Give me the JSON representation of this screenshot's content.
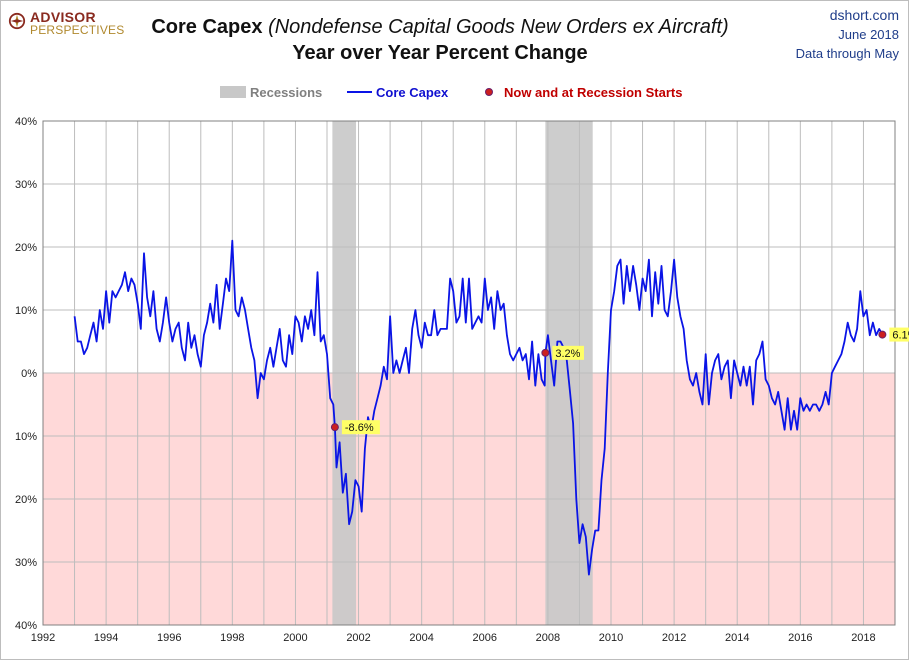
{
  "header": {
    "logo_top": "ADVISOR",
    "logo_bottom": "PERSPECTIVES",
    "title_bold": "Core Capex",
    "title_italic": "(Nondefense  Capital Goods New Orders ex Aircraft)",
    "subtitle": "Year over Year Percent Change",
    "source_line1": "dshort.com",
    "source_line2": "June 2018",
    "source_line3": "Data through May"
  },
  "colors": {
    "line": "#0a14e6",
    "recession": "#c8c8c8",
    "negative_zone": "#ffd9d9",
    "marker": "#cc1f1f",
    "label_bg": "#ffff66",
    "legend_marker_text": "#c00000",
    "legend_line_text": "#1010d0",
    "legend_recession_text": "#808080"
  },
  "chart_data": {
    "type": "line",
    "title": "Core Capex (Nondefense  Capital Goods New Orders ex Aircraft)",
    "subtitle": "Year over Year Percent Change",
    "xlim": [
      1992,
      2019
    ],
    "ylim": [
      -40,
      40
    ],
    "x_ticks": [
      1992,
      1994,
      1996,
      1998,
      2000,
      2002,
      2004,
      2006,
      2008,
      2010,
      2012,
      2014,
      2016,
      2018
    ],
    "x_tick_labels": [
      "1992",
      "1994",
      "1996",
      "1998",
      "2000",
      "2002",
      "2004",
      "2006",
      "2008",
      "2010",
      "2012",
      "2014",
      "2016",
      "2018"
    ],
    "y_ticks": [
      -40,
      -30,
      -20,
      -10,
      0,
      10,
      20,
      30,
      40
    ],
    "y_tick_labels": [
      "40%",
      "30%",
      "20%",
      "10%",
      "0%",
      "10%",
      "20%",
      "30%",
      "40%"
    ],
    "grid": "vertical yearly and horizontal every 10%",
    "legend": [
      {
        "label": "Recessions",
        "kind": "band"
      },
      {
        "label": "Core Capex",
        "kind": "line"
      },
      {
        "label": "Now and at Recession Starts",
        "kind": "marker"
      }
    ],
    "legend_position": "top-center",
    "recessions": [
      [
        2001.17,
        2001.92
      ],
      [
        2007.92,
        2009.42
      ]
    ],
    "series": [
      {
        "name": "Core Capex",
        "points": [
          [
            1993.0,
            9
          ],
          [
            1993.1,
            5
          ],
          [
            1993.2,
            5
          ],
          [
            1993.3,
            3
          ],
          [
            1993.4,
            4
          ],
          [
            1993.5,
            6
          ],
          [
            1993.6,
            8
          ],
          [
            1993.7,
            5
          ],
          [
            1993.8,
            10
          ],
          [
            1993.9,
            7
          ],
          [
            1994.0,
            13
          ],
          [
            1994.1,
            8
          ],
          [
            1994.2,
            13
          ],
          [
            1994.3,
            12
          ],
          [
            1994.4,
            13
          ],
          [
            1994.5,
            14
          ],
          [
            1994.6,
            16
          ],
          [
            1994.7,
            13
          ],
          [
            1994.8,
            15
          ],
          [
            1994.9,
            14
          ],
          [
            1995.0,
            11
          ],
          [
            1995.1,
            7
          ],
          [
            1995.2,
            19
          ],
          [
            1995.3,
            12
          ],
          [
            1995.4,
            9
          ],
          [
            1995.5,
            13
          ],
          [
            1995.6,
            7
          ],
          [
            1995.7,
            5
          ],
          [
            1995.8,
            8
          ],
          [
            1995.9,
            12
          ],
          [
            1996.0,
            8
          ],
          [
            1996.1,
            5
          ],
          [
            1996.2,
            7
          ],
          [
            1996.3,
            8
          ],
          [
            1996.4,
            4
          ],
          [
            1996.5,
            2
          ],
          [
            1996.6,
            8
          ],
          [
            1996.7,
            4
          ],
          [
            1996.8,
            6
          ],
          [
            1996.9,
            3
          ],
          [
            1997.0,
            1
          ],
          [
            1997.1,
            6
          ],
          [
            1997.2,
            8
          ],
          [
            1997.3,
            11
          ],
          [
            1997.4,
            8
          ],
          [
            1997.5,
            14
          ],
          [
            1997.6,
            7
          ],
          [
            1997.7,
            11
          ],
          [
            1997.8,
            15
          ],
          [
            1997.9,
            13
          ],
          [
            1998.0,
            21
          ],
          [
            1998.1,
            10
          ],
          [
            1998.2,
            9
          ],
          [
            1998.3,
            12
          ],
          [
            1998.4,
            10
          ],
          [
            1998.5,
            7
          ],
          [
            1998.6,
            4
          ],
          [
            1998.7,
            2
          ],
          [
            1998.8,
            -4
          ],
          [
            1998.9,
            0
          ],
          [
            1999.0,
            -1
          ],
          [
            1999.1,
            2
          ],
          [
            1999.2,
            4
          ],
          [
            1999.3,
            1
          ],
          [
            1999.4,
            4
          ],
          [
            1999.5,
            7
          ],
          [
            1999.6,
            2
          ],
          [
            1999.7,
            1
          ],
          [
            1999.8,
            6
          ],
          [
            1999.9,
            3
          ],
          [
            2000.0,
            9
          ],
          [
            2000.1,
            8
          ],
          [
            2000.2,
            5
          ],
          [
            2000.3,
            9
          ],
          [
            2000.4,
            7
          ],
          [
            2000.5,
            10
          ],
          [
            2000.6,
            6
          ],
          [
            2000.7,
            16
          ],
          [
            2000.8,
            5
          ],
          [
            2000.9,
            6
          ],
          [
            2001.0,
            3
          ],
          [
            2001.1,
            -4
          ],
          [
            2001.2,
            -5
          ],
          [
            2001.25,
            -8.6
          ],
          [
            2001.3,
            -15
          ],
          [
            2001.4,
            -11
          ],
          [
            2001.5,
            -19
          ],
          [
            2001.6,
            -16
          ],
          [
            2001.7,
            -24
          ],
          [
            2001.8,
            -22
          ],
          [
            2001.9,
            -17
          ],
          [
            2002.0,
            -18
          ],
          [
            2002.1,
            -22
          ],
          [
            2002.2,
            -12
          ],
          [
            2002.3,
            -7
          ],
          [
            2002.4,
            -9
          ],
          [
            2002.5,
            -6
          ],
          [
            2002.6,
            -4
          ],
          [
            2002.7,
            -2
          ],
          [
            2002.8,
            1
          ],
          [
            2002.9,
            -1
          ],
          [
            2003.0,
            9
          ],
          [
            2003.1,
            0
          ],
          [
            2003.2,
            2
          ],
          [
            2003.3,
            0
          ],
          [
            2003.4,
            2
          ],
          [
            2003.5,
            4
          ],
          [
            2003.6,
            0
          ],
          [
            2003.7,
            7
          ],
          [
            2003.8,
            10
          ],
          [
            2003.9,
            6
          ],
          [
            2004.0,
            4
          ],
          [
            2004.1,
            8
          ],
          [
            2004.2,
            6
          ],
          [
            2004.3,
            6
          ],
          [
            2004.4,
            10
          ],
          [
            2004.5,
            6
          ],
          [
            2004.6,
            7
          ],
          [
            2004.7,
            7
          ],
          [
            2004.8,
            7
          ],
          [
            2004.9,
            15
          ],
          [
            2005.0,
            13
          ],
          [
            2005.1,
            8
          ],
          [
            2005.2,
            9
          ],
          [
            2005.3,
            15
          ],
          [
            2005.4,
            8
          ],
          [
            2005.5,
            15
          ],
          [
            2005.6,
            7
          ],
          [
            2005.7,
            8
          ],
          [
            2005.8,
            9
          ],
          [
            2005.9,
            8
          ],
          [
            2006.0,
            15
          ],
          [
            2006.1,
            10
          ],
          [
            2006.2,
            12
          ],
          [
            2006.3,
            7
          ],
          [
            2006.4,
            13
          ],
          [
            2006.5,
            10
          ],
          [
            2006.6,
            11
          ],
          [
            2006.7,
            6
          ],
          [
            2006.8,
            3
          ],
          [
            2006.9,
            2
          ],
          [
            2007.0,
            3
          ],
          [
            2007.1,
            4
          ],
          [
            2007.2,
            2
          ],
          [
            2007.3,
            3
          ],
          [
            2007.4,
            -1
          ],
          [
            2007.5,
            5
          ],
          [
            2007.6,
            -2
          ],
          [
            2007.7,
            3
          ],
          [
            2007.8,
            -1
          ],
          [
            2007.9,
            -2
          ],
          [
            2007.92,
            3.2
          ],
          [
            2008.0,
            6
          ],
          [
            2008.1,
            2
          ],
          [
            2008.2,
            -2
          ],
          [
            2008.3,
            5
          ],
          [
            2008.4,
            5
          ],
          [
            2008.5,
            4
          ],
          [
            2008.6,
            2
          ],
          [
            2008.7,
            -3
          ],
          [
            2008.8,
            -8
          ],
          [
            2008.9,
            -20
          ],
          [
            2009.0,
            -27
          ],
          [
            2009.1,
            -24
          ],
          [
            2009.2,
            -26
          ],
          [
            2009.3,
            -32
          ],
          [
            2009.4,
            -28
          ],
          [
            2009.5,
            -25
          ],
          [
            2009.6,
            -25
          ],
          [
            2009.7,
            -17
          ],
          [
            2009.8,
            -12
          ],
          [
            2009.9,
            0
          ],
          [
            2010.0,
            10
          ],
          [
            2010.1,
            13
          ],
          [
            2010.2,
            17
          ],
          [
            2010.3,
            18
          ],
          [
            2010.4,
            11
          ],
          [
            2010.5,
            17
          ],
          [
            2010.6,
            13
          ],
          [
            2010.7,
            17
          ],
          [
            2010.8,
            14
          ],
          [
            2010.9,
            10
          ],
          [
            2011.0,
            15
          ],
          [
            2011.1,
            13
          ],
          [
            2011.2,
            18
          ],
          [
            2011.3,
            9
          ],
          [
            2011.4,
            16
          ],
          [
            2011.5,
            11
          ],
          [
            2011.6,
            17
          ],
          [
            2011.7,
            10
          ],
          [
            2011.8,
            9
          ],
          [
            2011.9,
            13
          ],
          [
            2012.0,
            18
          ],
          [
            2012.1,
            12
          ],
          [
            2012.2,
            9
          ],
          [
            2012.3,
            7
          ],
          [
            2012.4,
            2
          ],
          [
            2012.5,
            -1
          ],
          [
            2012.6,
            -2
          ],
          [
            2012.7,
            0
          ],
          [
            2012.8,
            -3
          ],
          [
            2012.9,
            -5
          ],
          [
            2013.0,
            3
          ],
          [
            2013.1,
            -5
          ],
          [
            2013.2,
            0
          ],
          [
            2013.3,
            2
          ],
          [
            2013.4,
            3
          ],
          [
            2013.5,
            -1
          ],
          [
            2013.6,
            1
          ],
          [
            2013.7,
            2
          ],
          [
            2013.8,
            -4
          ],
          [
            2013.9,
            2
          ],
          [
            2014.0,
            0
          ],
          [
            2014.1,
            -2
          ],
          [
            2014.2,
            1
          ],
          [
            2014.3,
            -2
          ],
          [
            2014.4,
            1
          ],
          [
            2014.5,
            -5
          ],
          [
            2014.6,
            2
          ],
          [
            2014.7,
            3
          ],
          [
            2014.8,
            5
          ],
          [
            2014.9,
            -1
          ],
          [
            2015.0,
            -2
          ],
          [
            2015.1,
            -4
          ],
          [
            2015.2,
            -5
          ],
          [
            2015.3,
            -3
          ],
          [
            2015.4,
            -6
          ],
          [
            2015.5,
            -9
          ],
          [
            2015.6,
            -4
          ],
          [
            2015.7,
            -9
          ],
          [
            2015.8,
            -6
          ],
          [
            2015.9,
            -9
          ],
          [
            2016.0,
            -4
          ],
          [
            2016.1,
            -6
          ],
          [
            2016.2,
            -5
          ],
          [
            2016.3,
            -6
          ],
          [
            2016.4,
            -5
          ],
          [
            2016.5,
            -5
          ],
          [
            2016.6,
            -6
          ],
          [
            2016.7,
            -5
          ],
          [
            2016.8,
            -3
          ],
          [
            2016.9,
            -5
          ],
          [
            2017.0,
            0
          ],
          [
            2017.1,
            1
          ],
          [
            2017.2,
            2
          ],
          [
            2017.3,
            3
          ],
          [
            2017.4,
            5
          ],
          [
            2017.5,
            8
          ],
          [
            2017.6,
            6
          ],
          [
            2017.7,
            5
          ],
          [
            2017.8,
            7
          ],
          [
            2017.9,
            13
          ],
          [
            2018.0,
            9
          ],
          [
            2018.1,
            10
          ],
          [
            2018.2,
            6
          ],
          [
            2018.3,
            8
          ],
          [
            2018.4,
            6
          ],
          [
            2018.5,
            7
          ],
          [
            2018.6,
            6.1
          ]
        ]
      }
    ],
    "annotations": [
      {
        "x": 2001.25,
        "y": -8.6,
        "label": "-8.6%"
      },
      {
        "x": 2007.92,
        "y": 3.2,
        "label": "3.2%"
      },
      {
        "x": 2018.6,
        "y": 6.1,
        "label": "6.1%"
      }
    ]
  }
}
